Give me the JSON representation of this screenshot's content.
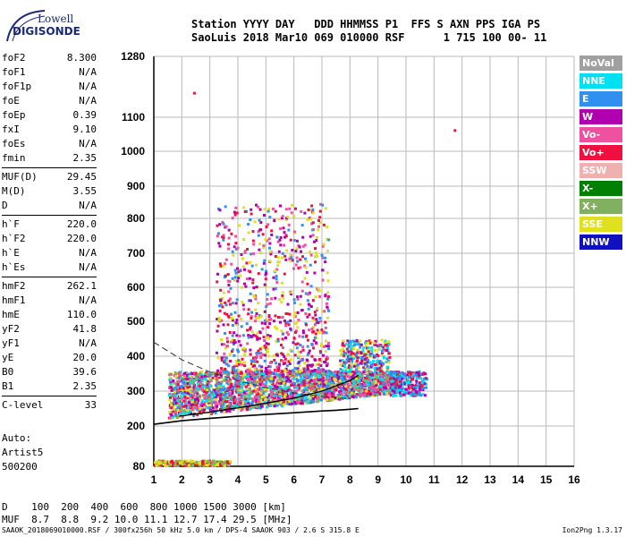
{
  "logo": {
    "line1": "Lowell",
    "line2": "DIGISONDE"
  },
  "header": {
    "line1": "Station YYYY DAY   DDD HHMMSS P1  FFS S AXN PPS IGA PS",
    "line2": "SaoLuis 2018 Mar10 069 010000 RSF      1 715 100 00- 11"
  },
  "params": [
    [
      {
        "name": "foF2",
        "value": "8.300"
      },
      {
        "name": "foF1",
        "value": "N/A"
      },
      {
        "name": "foF1p",
        "value": "N/A"
      },
      {
        "name": "foE",
        "value": "N/A"
      },
      {
        "name": "foEp",
        "value": "0.39"
      },
      {
        "name": "fxI",
        "value": "9.10"
      },
      {
        "name": "foEs",
        "value": "N/A"
      },
      {
        "name": "fmin",
        "value": "2.35"
      }
    ],
    [
      {
        "name": "MUF(D)",
        "value": "29.45"
      },
      {
        "name": "M(D)",
        "value": "3.55"
      },
      {
        "name": "D",
        "value": "N/A"
      }
    ],
    [
      {
        "name": "h`F",
        "value": "220.0"
      },
      {
        "name": "h`F2",
        "value": "220.0"
      },
      {
        "name": "h`E",
        "value": "N/A"
      },
      {
        "name": "h`Es",
        "value": "N/A"
      }
    ],
    [
      {
        "name": "hmF2",
        "value": "262.1"
      },
      {
        "name": "hmF1",
        "value": "N/A"
      },
      {
        "name": "hmE",
        "value": "110.0"
      },
      {
        "name": "yF2",
        "value": "41.8"
      },
      {
        "name": "yF1",
        "value": "N/A"
      },
      {
        "name": "yE",
        "value": "20.0"
      },
      {
        "name": "B0",
        "value": "39.6"
      },
      {
        "name": "B1",
        "value": "2.35"
      }
    ],
    [
      {
        "name": "C-level",
        "value": "33"
      }
    ]
  ],
  "auto": {
    "line1": "Auto:",
    "line2": "Artist5",
    "line3": "500200"
  },
  "legend": [
    {
      "label": "NoVal",
      "color": "#a0a0a0"
    },
    {
      "label": "NNE",
      "color": "#00e0f0"
    },
    {
      "label": "E",
      "color": "#3090f0"
    },
    {
      "label": "W",
      "color": "#b000b0"
    },
    {
      "label": "Vo-",
      "color": "#f050a0"
    },
    {
      "label": "Vo+",
      "color": "#f01040"
    },
    {
      "label": "SSW",
      "color": "#f0b0b0"
    },
    {
      "label": "X-",
      "color": "#008000"
    },
    {
      "label": "X+",
      "color": "#80b060"
    },
    {
      "label": "SSE",
      "color": "#e0e020"
    },
    {
      "label": "NNW",
      "color": "#1010c0"
    }
  ],
  "dmuf": {
    "d_line": "D    100  200  400  600  800 1000 1500 3000 [km]",
    "muf_line": "MUF  8.7  8.8  9.2 10.0 11.1 12.7 17.4 29.5 [MHz]"
  },
  "footer": "SAAOK_2018069010000.RSF / 300fx256h 50 kHz 5.0 km / DPS-4 SAAOK 903 / 2.6 S 315.8 E",
  "version": "Ion2Png 1.3.17",
  "chart_data": {
    "type": "scatter",
    "x_ticks": [
      "1",
      "2",
      "3",
      "4",
      "5",
      "6",
      "7",
      "8",
      "9",
      "10",
      "11",
      "12",
      "13",
      "14",
      "15",
      "16"
    ],
    "y_ticks": [
      "80",
      "200",
      "300",
      "400",
      "500",
      "600",
      "700",
      "800",
      "900",
      "1000",
      "1100",
      "1280"
    ],
    "xlim": [
      1,
      16
    ],
    "ylim": [
      80,
      1280
    ],
    "y_scale": "nonlinear",
    "grid": true,
    "profile_curve": {
      "x": [
        1.0,
        2.0,
        3.0,
        4.0,
        5.0,
        6.0,
        7.0,
        7.5,
        8.0,
        8.3
      ],
      "y": [
        205,
        215,
        222,
        228,
        233,
        238,
        243,
        245,
        248,
        250
      ]
    },
    "dashed_curve": {
      "x": [
        1.0,
        2.0,
        3.0,
        4.0,
        5.0,
        6.0,
        7.0,
        8.0
      ],
      "y": [
        440,
        390,
        355,
        330,
        310,
        295,
        285,
        278
      ]
    },
    "black_trace": {
      "x": [
        1.9,
        3.0,
        4.0,
        5.0,
        6.0,
        7.0,
        7.5,
        8.0,
        8.3
      ],
      "y": [
        228,
        240,
        252,
        265,
        280,
        300,
        315,
        330,
        345
      ]
    },
    "echo_regions": [
      {
        "x0": 1.5,
        "x1": 9.8,
        "y0": 220,
        "y1": 360,
        "density": "high",
        "series": [
          "Vo+",
          "Vo-",
          "W",
          "SSE",
          "X+",
          "NNE",
          "E"
        ]
      },
      {
        "x0": 3.0,
        "x1": 7.2,
        "y0": 360,
        "y1": 850,
        "density": "low",
        "series": [
          "Vo+",
          "W",
          "SSE",
          "Vo-",
          "E"
        ]
      },
      {
        "x0": 7.6,
        "x1": 9.4,
        "y0": 360,
        "y1": 450,
        "density": "medium",
        "series": [
          "Vo+",
          "W",
          "E",
          "NNE",
          "SSE"
        ]
      },
      {
        "x0": 9.4,
        "x1": 10.7,
        "y0": 290,
        "y1": 360,
        "density": "medium",
        "series": [
          "Vo+",
          "E",
          "NNE",
          "W"
        ]
      },
      {
        "x0": 1.0,
        "x1": 3.7,
        "y0": 85,
        "y1": 100,
        "density": "medium",
        "series": [
          "Vo+",
          "X+",
          "SSE"
        ]
      }
    ],
    "isolated_points": [
      {
        "x": 2.4,
        "y": 1175,
        "series": "Vo+"
      },
      {
        "x": 11.7,
        "y": 1065,
        "series": "Vo+"
      }
    ]
  }
}
